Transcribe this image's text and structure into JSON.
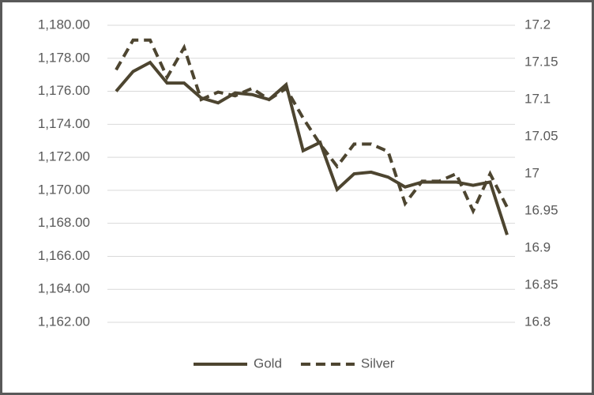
{
  "chart_data": {
    "type": "line",
    "series": [
      {
        "name": "Gold",
        "color": "#4d4530",
        "line_style": "solid",
        "axis": "y",
        "values": [
          1176.0,
          1177.2,
          1177.75,
          1176.5,
          1176.5,
          1175.6,
          1175.3,
          1175.9,
          1175.8,
          1175.5,
          1176.4,
          1172.4,
          1172.9,
          1170.05,
          1171.0,
          1171.1,
          1170.8,
          1170.2,
          1170.5,
          1170.5,
          1170.5,
          1170.3,
          1170.5,
          1167.3
        ]
      },
      {
        "name": "Silver",
        "color": "#4d4530",
        "line_style": "dashed",
        "axis": "y2",
        "values": [
          17.14,
          17.18,
          17.18,
          17.13,
          17.17,
          17.1,
          17.11,
          17.105,
          17.115,
          17.1,
          17.115,
          17.075,
          17.04,
          17.01,
          17.04,
          17.04,
          17.03,
          16.96,
          16.99,
          16.99,
          17.0,
          16.95,
          17.0,
          16.955
        ]
      }
    ],
    "ylim": [
      1162,
      1180
    ],
    "yticks": [
      {
        "value": 1180,
        "label": "1,180.00"
      },
      {
        "value": 1178,
        "label": "1,178.00"
      },
      {
        "value": 1176,
        "label": "1,176.00"
      },
      {
        "value": 1174,
        "label": "1,174.00"
      },
      {
        "value": 1172,
        "label": "1,172.00"
      },
      {
        "value": 1170,
        "label": "1,170.00"
      },
      {
        "value": 1168,
        "label": "1,168.00"
      },
      {
        "value": 1166,
        "label": "1,166.00"
      },
      {
        "value": 1164,
        "label": "1,164.00"
      },
      {
        "value": 1162,
        "label": "1,162.00"
      }
    ],
    "y2lim": [
      16.8,
      17.2
    ],
    "y2ticks": [
      17.2,
      17.15,
      17.1,
      17.05,
      17,
      16.95,
      16.9,
      16.85,
      16.8
    ],
    "grid": true,
    "legend": "bottom"
  }
}
